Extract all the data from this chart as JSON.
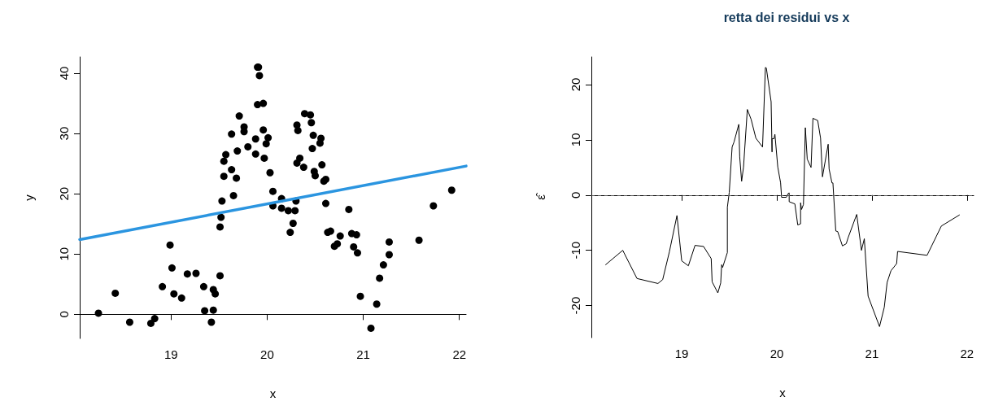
{
  "chart_data": [
    {
      "type": "scatter",
      "xlabel": "x",
      "ylabel": "y",
      "xlim": [
        18.05,
        22.07
      ],
      "ylim": [
        -4,
        42.7
      ],
      "xticks": [
        19,
        20,
        21,
        22
      ],
      "yticks": [
        0,
        10,
        20,
        30,
        40
      ],
      "marker": "circle",
      "series": [
        {
          "color": "#000000",
          "x": [
            18.245,
            18.42,
            18.57,
            18.79,
            18.83,
            18.91,
            18.99,
            19.01,
            19.03,
            19.11,
            19.17,
            19.26,
            19.34,
            19.35,
            19.42,
            19.44,
            19.44,
            19.46,
            19.51,
            19.51,
            19.52,
            19.53,
            19.55,
            19.55,
            19.57,
            19.63,
            19.65,
            19.68,
            19.63,
            19.69,
            19.71,
            19.76,
            19.76,
            19.8,
            19.88,
            19.88,
            19.9,
            19.96,
            19.9,
            19.92,
            19.91,
            19.96,
            20.01,
            19.99,
            19.97,
            20.03,
            20.06,
            20.06,
            20.15,
            20.15,
            20.22,
            20.29,
            20.3,
            20.27,
            20.24,
            20.31,
            20.32,
            20.39,
            20.45,
            20.46,
            20.48,
            20.56,
            20.55,
            20.47,
            20.34,
            20.31,
            20.38,
            20.57,
            20.49,
            20.5,
            20.59,
            20.61,
            20.61,
            20.85,
            20.63,
            20.66,
            20.76,
            20.7,
            20.73,
            20.88,
            20.93,
            20.9,
            20.94,
            20.97,
            21.08,
            21.14,
            21.17,
            21.21,
            21.27,
            21.27,
            21.58,
            21.73,
            21.92
          ],
          "values": [
            0.2,
            3.5,
            -1.3,
            -1.5,
            -0.7,
            4.6,
            11.5,
            7.7,
            3.4,
            2.7,
            6.7,
            6.8,
            4.6,
            0.6,
            -1.3,
            0.7,
            4.1,
            3.4,
            6.4,
            14.5,
            16.1,
            18.8,
            22.9,
            25.4,
            26.5,
            24.0,
            19.7,
            22.6,
            29.9,
            27.1,
            32.9,
            31.1,
            30.3,
            27.8,
            26.6,
            29.1,
            34.8,
            35.0,
            41.0,
            39.6,
            41.0,
            30.6,
            29.3,
            28.3,
            25.9,
            23.5,
            20.4,
            18.0,
            19.2,
            17.6,
            17.2,
            17.2,
            18.8,
            15.1,
            13.6,
            31.4,
            30.5,
            33.3,
            33.1,
            31.8,
            29.7,
            29.2,
            28.4,
            27.5,
            25.9,
            25.1,
            24.4,
            24.8,
            23.7,
            23.0,
            22.1,
            22.4,
            18.4,
            17.4,
            13.6,
            13.8,
            13.0,
            11.3,
            11.7,
            13.4,
            13.2,
            11.2,
            10.2,
            3.0,
            -2.3,
            1.7,
            6.0,
            8.2,
            9.9,
            12.0,
            12.3,
            18.0,
            20.6
          ]
        },
        {
          "type": "line",
          "color": "#2b95e0",
          "marker": "none",
          "x": [
            18.05,
            22.07
          ],
          "values": [
            12.4,
            24.6
          ]
        }
      ]
    },
    {
      "type": "line",
      "title": "retta dei residui vs x",
      "xlabel": "x",
      "ylabel": "ε̂",
      "xlim": [
        18.05,
        22.07
      ],
      "ylim": [
        -25.8,
        25
      ],
      "xticks": [
        19,
        20,
        21,
        22
      ],
      "yticks": [
        -20,
        -10,
        0,
        10,
        20
      ],
      "marker": "none",
      "line_style": "solid",
      "ref_lines": [
        {
          "axis": "y",
          "value": 0,
          "color": "#555555",
          "line_style": "dashed"
        }
      ],
      "series": [
        {
          "color": "#000000",
          "x": [
            18.2,
            18.38,
            18.53,
            18.75,
            18.8,
            18.87,
            18.95,
            19.0,
            19.07,
            19.14,
            19.23,
            19.31,
            19.32,
            19.38,
            19.41,
            19.42,
            19.43,
            19.48,
            19.48,
            19.5,
            19.53,
            19.55,
            19.6,
            19.61,
            19.63,
            19.65,
            19.69,
            19.73,
            19.78,
            19.85,
            19.88,
            19.89,
            19.94,
            19.95,
            19.95,
            19.97,
            19.98,
            20.01,
            20.04,
            20.05,
            20.1,
            20.12,
            20.13,
            20.13,
            20.19,
            20.22,
            20.25,
            20.25,
            20.26,
            20.28,
            20.3,
            20.32,
            20.36,
            20.38,
            20.43,
            20.46,
            20.48,
            20.54,
            20.55,
            20.58,
            20.59,
            20.62,
            20.64,
            20.69,
            20.73,
            20.75,
            20.84,
            20.89,
            20.92,
            20.96,
            21.08,
            21.13,
            21.16,
            21.2,
            21.26,
            21.27,
            21.58,
            21.73,
            21.92
          ],
          "values": [
            -12.6,
            -10.0,
            -15.1,
            -16.0,
            -15.3,
            -10.3,
            -3.7,
            -11.9,
            -12.8,
            -9.1,
            -9.3,
            -11.5,
            -15.7,
            -17.7,
            -15.9,
            -12.6,
            -13.1,
            -10.4,
            -2.2,
            0.5,
            8.7,
            9.6,
            12.8,
            6.9,
            2.5,
            5.1,
            15.5,
            13.7,
            10.3,
            8.7,
            23.1,
            23.0,
            16.9,
            7.8,
            10.2,
            10.2,
            11.0,
            5.1,
            2.2,
            -0.4,
            -0.4,
            0.3,
            0.4,
            -1.2,
            -1.6,
            -5.4,
            -5.2,
            -1.4,
            -2.6,
            -1.7,
            12.2,
            6.5,
            5.0,
            13.9,
            13.5,
            10.3,
            3.3,
            9.2,
            4.7,
            2.2,
            2.2,
            -6.5,
            -6.6,
            -9.2,
            -8.8,
            -7.7,
            -3.5,
            -10.0,
            -7.9,
            -18.3,
            -23.8,
            -20.3,
            -15.8,
            -13.7,
            -12.4,
            -10.2,
            -10.9,
            -5.6,
            -3.6
          ]
        }
      ]
    }
  ]
}
